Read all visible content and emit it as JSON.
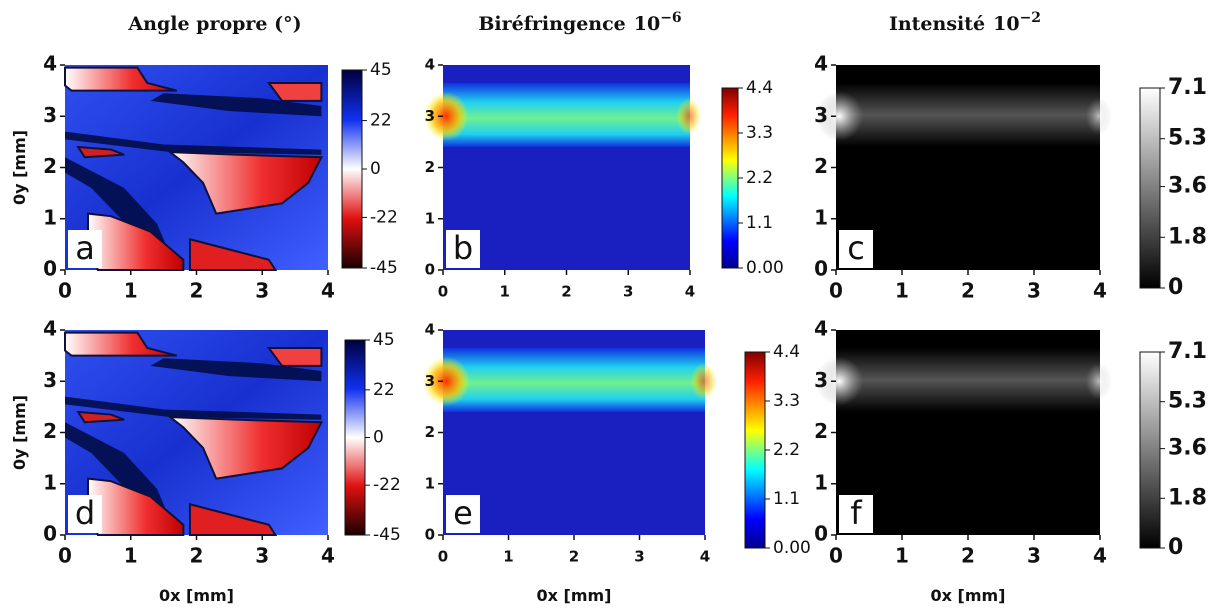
{
  "chart_data": [
    {
      "type": "heatmap",
      "title": "Angle propre (°)",
      "panel": "a",
      "colormap": "seismic",
      "ylabel": "0y [mm]",
      "xlim": [
        0,
        4
      ],
      "ylim": [
        0,
        4
      ],
      "xticks": [
        0,
        1,
        2,
        3,
        4
      ],
      "yticks": [
        0,
        1,
        2,
        3,
        4
      ],
      "clim": [
        -45,
        45
      ],
      "cticks": [
        -45,
        -22,
        0,
        22,
        45
      ]
    },
    {
      "type": "heatmap",
      "title": "Biréfringence",
      "title_base": "10",
      "title_exponent": "−6",
      "panel": "b",
      "colormap": "jet",
      "xlim": [
        0,
        4
      ],
      "ylim": [
        0,
        4
      ],
      "xticks": [
        0,
        1,
        2,
        3,
        4
      ],
      "yticks": [
        0,
        1,
        2,
        3,
        4
      ],
      "clim": [
        0,
        4.4
      ],
      "cticks": [
        {
          "value": 0,
          "label": "0.00"
        },
        1.1,
        2.2,
        3.3,
        4.4
      ]
    },
    {
      "type": "heatmap",
      "title": "Intensité",
      "title_base": "10",
      "title_exponent": "−2",
      "panel": "c",
      "colormap": "gray",
      "xlim": [
        0,
        4
      ],
      "ylim": [
        0,
        4
      ],
      "xticks": [
        0,
        1,
        2,
        3,
        4
      ],
      "yticks": [
        0,
        1,
        2,
        3,
        4
      ],
      "clim": [
        0,
        7.1
      ],
      "cticks": [
        0,
        1.8,
        3.6,
        5.3,
        7.1
      ]
    },
    {
      "type": "heatmap",
      "panel": "d",
      "colormap": "seismic",
      "ylabel": "0y [mm]",
      "xlabel": "0x [mm]",
      "xlim": [
        0,
        4
      ],
      "ylim": [
        0,
        4
      ],
      "xticks": [
        0,
        1,
        2,
        3,
        4
      ],
      "yticks": [
        0,
        1,
        2,
        3,
        4
      ],
      "clim": [
        -45,
        45
      ],
      "cticks": [
        -45,
        -22,
        0,
        22,
        45
      ]
    },
    {
      "type": "heatmap",
      "panel": "e",
      "colormap": "jet",
      "xlabel": "0x [mm]",
      "xlim": [
        0,
        4
      ],
      "ylim": [
        0,
        4
      ],
      "xticks": [
        0,
        1,
        2,
        3,
        4
      ],
      "yticks": [
        0,
        1,
        2,
        3,
        4
      ],
      "clim": [
        0,
        4.4
      ],
      "cticks": [
        {
          "value": 0,
          "label": "0.00"
        },
        1.1,
        2.2,
        3.3,
        4.4
      ]
    },
    {
      "type": "heatmap",
      "panel": "f",
      "colormap": "gray",
      "xlabel": "0x [mm]",
      "xlim": [
        0,
        4
      ],
      "ylim": [
        0,
        4
      ],
      "xticks": [
        0,
        1,
        2,
        3,
        4
      ],
      "yticks": [
        0,
        1,
        2,
        3,
        4
      ],
      "clim": [
        0,
        7.1
      ],
      "cticks": [
        0,
        1.8,
        3.6,
        5.3,
        7.1
      ]
    }
  ]
}
